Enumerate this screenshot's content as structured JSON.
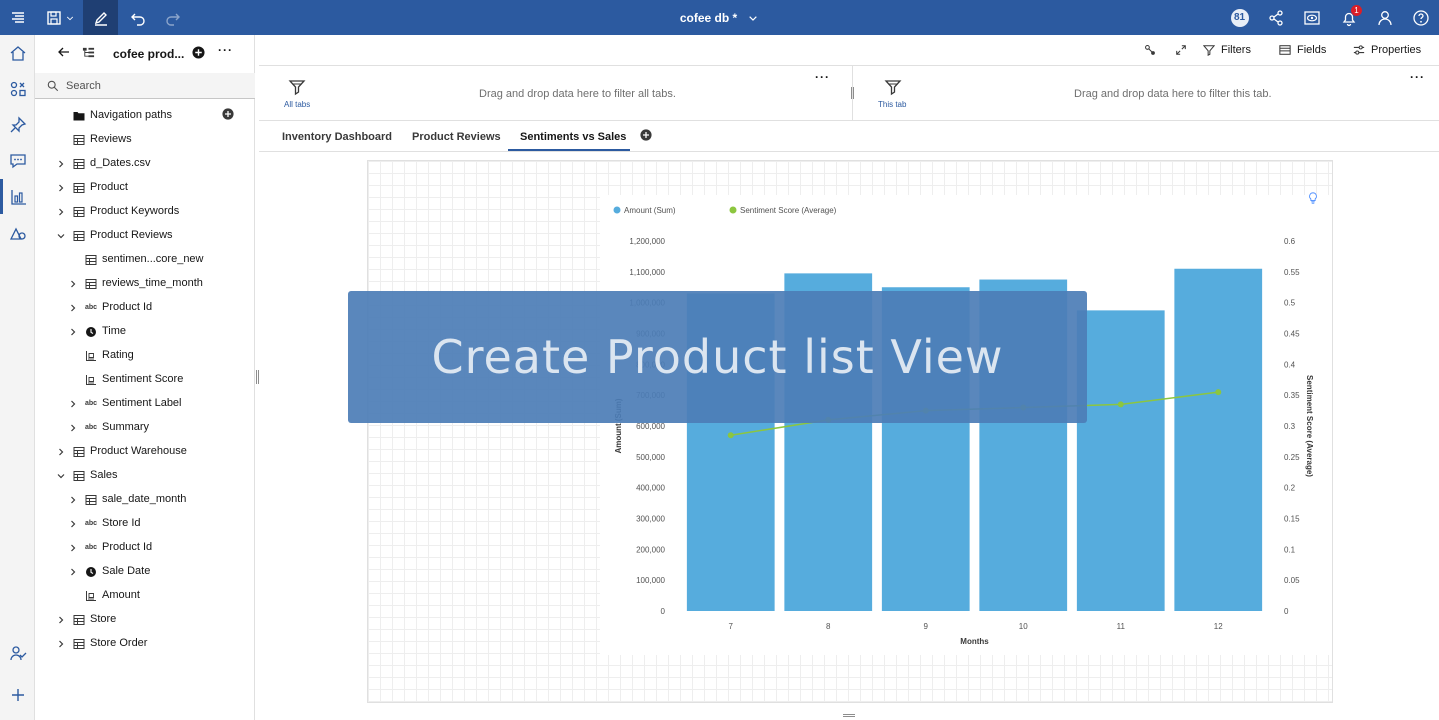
{
  "topbar": {
    "title": "cofee db *",
    "badge_count": "81",
    "notification_count": "1"
  },
  "panel": {
    "source_name": "cofee prod...",
    "more_label": "···",
    "search_placeholder": "Search",
    "items": [
      {
        "label": "Navigation paths",
        "icon": "folder-icon",
        "level": 0,
        "chevron": "none"
      },
      {
        "label": "Reviews",
        "icon": "table-icon",
        "level": 0,
        "chevron": "none"
      },
      {
        "label": "d_Dates.csv",
        "icon": "table-icon",
        "level": 0,
        "chevron": "right"
      },
      {
        "label": "Product",
        "icon": "table-icon",
        "level": 0,
        "chevron": "right"
      },
      {
        "label": "Product Keywords",
        "icon": "table-icon",
        "level": 0,
        "chevron": "right"
      },
      {
        "label": "Product Reviews",
        "icon": "table-icon",
        "level": 0,
        "chevron": "down"
      },
      {
        "label": "sentimen...core_new",
        "icon": "table-icon",
        "level": 1,
        "chevron": "none"
      },
      {
        "label": "reviews_time_month",
        "icon": "table-icon",
        "level": 1,
        "chevron": "right"
      },
      {
        "label": "Product Id",
        "icon": "abc-icon",
        "level": 1,
        "chevron": "right"
      },
      {
        "label": "Time",
        "icon": "clock-icon",
        "level": 1,
        "chevron": "right"
      },
      {
        "label": "Rating",
        "icon": "measure-icon",
        "level": 1,
        "chevron": "none"
      },
      {
        "label": "Sentiment Score",
        "icon": "measure-icon",
        "level": 1,
        "chevron": "none"
      },
      {
        "label": "Sentiment Label",
        "icon": "abc-icon",
        "level": 1,
        "chevron": "right"
      },
      {
        "label": "Summary",
        "icon": "abc-icon",
        "level": 1,
        "chevron": "right"
      },
      {
        "label": "Product Warehouse",
        "icon": "table-icon",
        "level": 0,
        "chevron": "right"
      },
      {
        "label": "Sales",
        "icon": "table-icon",
        "level": 0,
        "chevron": "down"
      },
      {
        "label": "sale_date_month",
        "icon": "table-icon",
        "level": 1,
        "chevron": "right"
      },
      {
        "label": "Store Id",
        "icon": "abc-icon",
        "level": 1,
        "chevron": "right"
      },
      {
        "label": "Product Id",
        "icon": "abc-icon",
        "level": 1,
        "chevron": "right"
      },
      {
        "label": "Sale Date",
        "icon": "clock-icon",
        "level": 1,
        "chevron": "right"
      },
      {
        "label": "Amount",
        "icon": "measure-icon",
        "level": 1,
        "chevron": "none"
      },
      {
        "label": "Store",
        "icon": "table-icon",
        "level": 0,
        "chevron": "right"
      },
      {
        "label": "Store Order",
        "icon": "table-icon",
        "level": 0,
        "chevron": "right"
      }
    ]
  },
  "toolbar": {
    "filters_label": "Filters",
    "fields_label": "Fields",
    "properties_label": "Properties"
  },
  "filters": {
    "all_tabs_label": "All tabs",
    "all_tabs_hint": "Drag and drop data here to filter all tabs.",
    "this_tab_label": "This tab",
    "this_tab_hint": "Drag and drop data here to filter this tab.",
    "more_label": "···"
  },
  "tabs": [
    {
      "label": "Inventory Dashboard",
      "active": false
    },
    {
      "label": "Product Reviews",
      "active": false
    },
    {
      "label": "Sentiments vs Sales",
      "active": true
    }
  ],
  "overlay": {
    "text": "Create Product list View"
  },
  "colors": {
    "accent": "#2c5aa0",
    "bar": "#56acdd",
    "line": "#8cc63f"
  },
  "chart_data": {
    "type": "bar",
    "categories": [
      "7",
      "8",
      "9",
      "10",
      "11",
      "12"
    ],
    "series": [
      {
        "name": "Amount (Sum)",
        "type": "bar",
        "axis": "left",
        "values": [
          1030000,
          1095000,
          1050000,
          1075000,
          975000,
          1110000
        ]
      },
      {
        "name": "Sentiment Score (Average)",
        "type": "line",
        "axis": "right",
        "values": [
          0.285,
          0.31,
          0.325,
          0.33,
          0.335,
          0.355
        ]
      }
    ],
    "legend": [
      "Amount (Sum)",
      "Sentiment Score (Average)"
    ],
    "legend_position": "top-left",
    "xlabel": "Months",
    "ylabel": "Amount (Sum)",
    "y2label": "Sentiment Score (Average)",
    "ylim": [
      0,
      1200000
    ],
    "y2lim": [
      0,
      0.6
    ],
    "yticks": [
      "0",
      "100,000",
      "200,000",
      "300,000",
      "400,000",
      "500,000",
      "600,000",
      "700,000",
      "800,000",
      "900,000",
      "1,000,000",
      "1,100,000",
      "1,200,000"
    ],
    "y2ticks": [
      "0",
      "0.05",
      "0.1",
      "0.15",
      "0.2",
      "0.25",
      "0.3",
      "0.35",
      "0.4",
      "0.45",
      "0.5",
      "0.55",
      "0.6"
    ],
    "grid": false
  }
}
